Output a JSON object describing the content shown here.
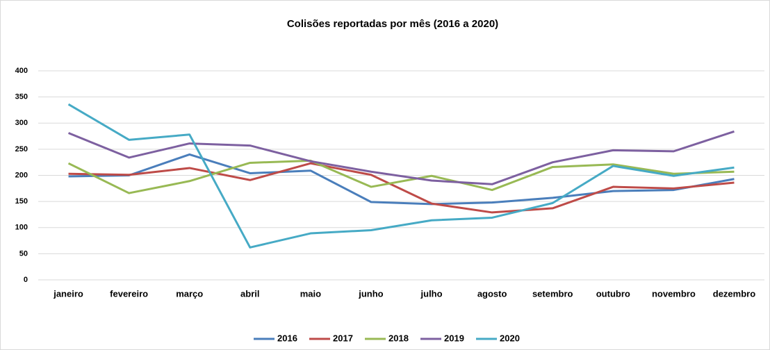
{
  "chart_data": {
    "type": "line",
    "title": "Colisões reportadas por mês (2016 a 2020)",
    "categories": [
      "janeiro",
      "fevereiro",
      "março",
      "abril",
      "maio",
      "junho",
      "julho",
      "agosto",
      "setembro",
      "outubro",
      "novembro",
      "dezembro"
    ],
    "series": [
      {
        "name": "2016",
        "color": "#4a7ebb",
        "values": [
          198,
          200,
          240,
          204,
          209,
          149,
          145,
          148,
          157,
          170,
          172,
          193
        ]
      },
      {
        "name": "2017",
        "color": "#be4b48",
        "values": [
          203,
          201,
          214,
          191,
          223,
          201,
          146,
          129,
          137,
          178,
          175,
          186
        ]
      },
      {
        "name": "2018",
        "color": "#98b954",
        "values": [
          223,
          166,
          189,
          224,
          228,
          178,
          199,
          172,
          216,
          221,
          203,
          207
        ]
      },
      {
        "name": "2019",
        "color": "#7d60a0",
        "values": [
          281,
          234,
          261,
          257,
          227,
          207,
          190,
          183,
          225,
          248,
          246,
          284
        ]
      },
      {
        "name": "2020",
        "color": "#46aac5",
        "values": [
          336,
          268,
          278,
          62,
          89,
          95,
          114,
          119,
          147,
          218,
          199,
          215
        ]
      }
    ],
    "ylim": [
      0,
      400
    ],
    "yticks": [
      0,
      50,
      100,
      150,
      200,
      250,
      300,
      350,
      400
    ],
    "grid": true,
    "legend": "bottom"
  }
}
